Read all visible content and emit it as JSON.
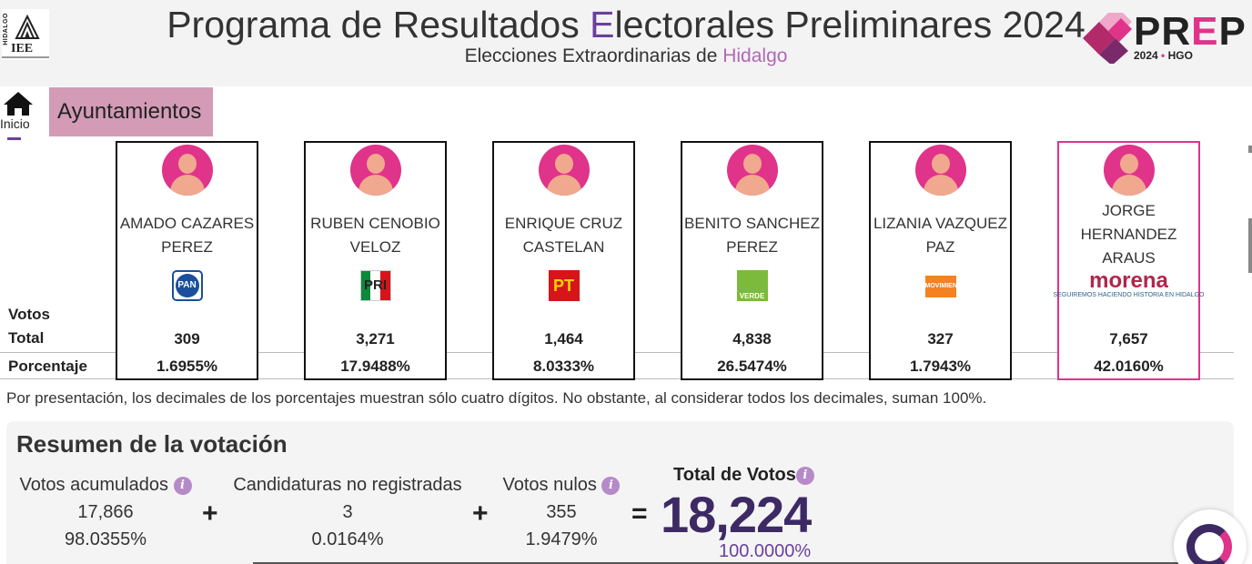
{
  "header": {
    "iee_logo_vertical": "HIDALGO",
    "iee_logo_text": "IEE",
    "title_part1": "Programa de Resultados ",
    "title_highlight": "E",
    "title_part2": "lectorales Preliminares 2024",
    "subtitle_part1": "Elecciones Extraordinarias de ",
    "subtitle_highlight": "Hidalgo",
    "prep_logo": {
      "p1": "PR",
      "e": "E",
      "p2": "P",
      "year": "2024",
      "dot": "•",
      "state": "HGO"
    }
  },
  "nav": {
    "home_label": "Inicio",
    "tab_label": "Ayuntamientos"
  },
  "table": {
    "label_votos": "Votos",
    "label_total": "Total",
    "label_porcentaje": "Porcentaje",
    "candidates": [
      {
        "name": "AMADO CAZARES PEREZ",
        "party": "PAN",
        "party_text": "PAN",
        "votes": "309",
        "percent": "1.6955%"
      },
      {
        "name": "RUBEN CENOBIO VELOZ",
        "party": "PRI",
        "party_text": "PRI",
        "votes": "3,271",
        "percent": "17.9488%"
      },
      {
        "name": "ENRIQUE CRUZ CASTELAN",
        "party": "PT",
        "party_text": "PT",
        "votes": "1,464",
        "percent": "8.0333%"
      },
      {
        "name": "BENITO SANCHEZ PEREZ",
        "party": "VERDE",
        "party_text": "VERDE",
        "votes": "4,838",
        "percent": "26.5474%"
      },
      {
        "name": "LIZANIA VAZQUEZ PAZ",
        "party": "MOVIMIENTO CIUDADANO",
        "party_text": "MOVIMIENTO CIUDADANO",
        "votes": "327",
        "percent": "1.7943%"
      },
      {
        "name": "JORGE HERNANDEZ ARAUS",
        "party": "MORENA",
        "party_text": "morena",
        "party_slogan": "SEGUIREMOS HACIENDO HISTORIA EN HIDALGO",
        "votes": "7,657",
        "percent": "42.0160%"
      }
    ]
  },
  "note": "Por presentación, los decimales de los porcentajes muestran sólo cuatro dígitos. No obstante, al considerar todos los decimales, suman 100%.",
  "summary": {
    "title": "Resumen de la votación",
    "acumulados": {
      "label": "Votos acumulados",
      "votes": "17,866",
      "percent": "98.0355%"
    },
    "no_registradas": {
      "label": "Candidaturas no registradas",
      "votes": "3",
      "percent": "0.0164%"
    },
    "nulos": {
      "label": "Votos nulos",
      "votes": "355",
      "percent": "1.9479%"
    },
    "total": {
      "label": "Total de Votos",
      "votes": "18,224",
      "percent": "100.0000%"
    },
    "plus": "+",
    "equals": "=",
    "info_glyph": "i"
  },
  "colors": {
    "accent_purple": "#6b3fa0",
    "accent_pink": "#e0338a",
    "tab_bg": "#d39bb6",
    "total_color": "#3d2a64"
  }
}
